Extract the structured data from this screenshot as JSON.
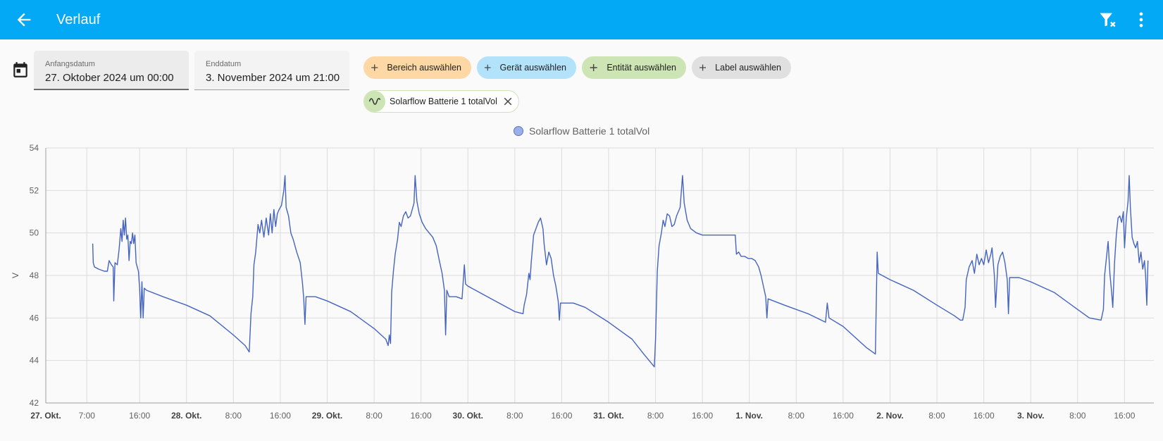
{
  "header": {
    "title": "Verlauf",
    "back_icon": "arrow-left-icon",
    "filter_icon": "filter-remove-icon",
    "menu_icon": "dots-vertical-icon",
    "bar_color": "#03a9f4"
  },
  "date_range": {
    "calendar_icon": "calendar-icon",
    "start": {
      "label": "Anfangsdatum",
      "value": "27. Oktober 2024 um 00:00"
    },
    "end": {
      "label": "Enddatum",
      "value": "3. November 2024 um 21:00"
    }
  },
  "pickers": [
    {
      "label": "Bereich auswählen",
      "color": "#fdd8a4"
    },
    {
      "label": "Gerät auswählen",
      "color": "#b3e3fa"
    },
    {
      "label": "Entität auswählen",
      "color": "#cde5b5"
    },
    {
      "label": "Label auswählen",
      "color": "#e0e0e0"
    }
  ],
  "selected_entity": {
    "label": "Solarflow Batterie 1 totalVol",
    "icon": "sine-wave-icon",
    "close_icon": "close-icon"
  },
  "chart_data": {
    "type": "line",
    "legend": "Solarflow Batterie 1 totalVol",
    "legend_position": "top-center",
    "ylabel": "V",
    "ylim": [
      42,
      54
    ],
    "yticks": [
      42,
      44,
      46,
      48,
      50,
      52,
      54
    ],
    "x_range_hours": [
      0,
      189
    ],
    "xticks": [
      {
        "label": "27. Okt.",
        "hour": 0,
        "bold": true
      },
      {
        "label": "7:00",
        "hour": 7,
        "bold": false
      },
      {
        "label": "16:00",
        "hour": 16,
        "bold": false
      },
      {
        "label": "28. Okt.",
        "hour": 24,
        "bold": true
      },
      {
        "label": "8:00",
        "hour": 32,
        "bold": false
      },
      {
        "label": "16:00",
        "hour": 40,
        "bold": false
      },
      {
        "label": "29. Okt.",
        "hour": 48,
        "bold": true
      },
      {
        "label": "8:00",
        "hour": 56,
        "bold": false
      },
      {
        "label": "16:00",
        "hour": 64,
        "bold": false
      },
      {
        "label": "30. Okt.",
        "hour": 72,
        "bold": true
      },
      {
        "label": "8:00",
        "hour": 80,
        "bold": false
      },
      {
        "label": "16:00",
        "hour": 88,
        "bold": false
      },
      {
        "label": "31. Okt.",
        "hour": 96,
        "bold": true
      },
      {
        "label": "8:00",
        "hour": 104,
        "bold": false
      },
      {
        "label": "16:00",
        "hour": 112,
        "bold": false
      },
      {
        "label": "1. Nov.",
        "hour": 120,
        "bold": true
      },
      {
        "label": "8:00",
        "hour": 128,
        "bold": false
      },
      {
        "label": "16:00",
        "hour": 136,
        "bold": false
      },
      {
        "label": "2. Nov.",
        "hour": 144,
        "bold": true
      },
      {
        "label": "8:00",
        "hour": 152,
        "bold": false
      },
      {
        "label": "16:00",
        "hour": 160,
        "bold": false
      },
      {
        "label": "3. Nov.",
        "hour": 168,
        "bold": true
      },
      {
        "label": "8:00",
        "hour": 176,
        "bold": false
      },
      {
        "label": "16:00",
        "hour": 184,
        "bold": false
      }
    ],
    "grid": true,
    "line_color": "#4464c0",
    "series": [
      {
        "name": "Solarflow Batterie 1 totalVol",
        "points": [
          [
            8.0,
            49.5
          ],
          [
            8.1,
            48.6
          ],
          [
            8.3,
            48.4
          ],
          [
            9.0,
            48.3
          ],
          [
            10.0,
            48.2
          ],
          [
            10.5,
            48.2
          ],
          [
            10.8,
            48.7
          ],
          [
            11.2,
            48.5
          ],
          [
            11.5,
            48.4
          ],
          [
            11.6,
            46.8
          ],
          [
            11.8,
            48.6
          ],
          [
            12.2,
            48.5
          ],
          [
            12.5,
            49.2
          ],
          [
            12.8,
            50.2
          ],
          [
            13.0,
            49.6
          ],
          [
            13.2,
            50.6
          ],
          [
            13.4,
            49.9
          ],
          [
            13.6,
            50.7
          ],
          [
            13.8,
            49.7
          ],
          [
            14.0,
            49.9
          ],
          [
            14.2,
            48.7
          ],
          [
            14.4,
            49.6
          ],
          [
            14.6,
            49.5
          ],
          [
            14.8,
            50.0
          ],
          [
            15.0,
            49.5
          ],
          [
            15.2,
            49.9
          ],
          [
            15.4,
            48.6
          ],
          [
            15.8,
            48.2
          ],
          [
            16.0,
            47.4
          ],
          [
            16.2,
            46.0
          ],
          [
            16.4,
            47.7
          ],
          [
            16.6,
            46.0
          ],
          [
            16.8,
            47.4
          ],
          [
            17.2,
            47.3
          ],
          [
            20.0,
            47.0
          ],
          [
            24.0,
            46.6
          ],
          [
            28.0,
            46.1
          ],
          [
            32.0,
            45.2
          ],
          [
            34.0,
            44.7
          ],
          [
            34.7,
            44.4
          ],
          [
            35.0,
            46.2
          ],
          [
            35.3,
            47.0
          ],
          [
            35.5,
            48.5
          ],
          [
            35.8,
            49.1
          ],
          [
            36.2,
            50.4
          ],
          [
            36.5,
            50.0
          ],
          [
            36.8,
            50.6
          ],
          [
            37.2,
            49.8
          ],
          [
            37.6,
            50.7
          ],
          [
            38.0,
            49.9
          ],
          [
            38.3,
            50.9
          ],
          [
            38.6,
            50.0
          ],
          [
            38.9,
            51.1
          ],
          [
            39.2,
            50.3
          ],
          [
            39.5,
            50.9
          ],
          [
            39.8,
            51.1
          ],
          [
            40.2,
            51.3
          ],
          [
            40.6,
            52.0
          ],
          [
            40.8,
            52.7
          ],
          [
            41.0,
            51.2
          ],
          [
            41.4,
            50.8
          ],
          [
            41.8,
            50.0
          ],
          [
            42.2,
            49.7
          ],
          [
            42.8,
            49.1
          ],
          [
            43.4,
            48.6
          ],
          [
            43.8,
            47.6
          ],
          [
            44.0,
            46.9
          ],
          [
            44.2,
            45.7
          ],
          [
            44.4,
            47.0
          ],
          [
            46.0,
            47.0
          ],
          [
            48.0,
            46.8
          ],
          [
            52.0,
            46.3
          ],
          [
            56.0,
            45.5
          ],
          [
            58.0,
            45.0
          ],
          [
            58.4,
            44.7
          ],
          [
            58.6,
            45.2
          ],
          [
            58.8,
            44.8
          ],
          [
            59.0,
            47.2
          ],
          [
            59.3,
            48.2
          ],
          [
            59.6,
            49.0
          ],
          [
            60.0,
            49.7
          ],
          [
            60.3,
            50.5
          ],
          [
            60.6,
            50.3
          ],
          [
            61.0,
            50.8
          ],
          [
            61.4,
            51.0
          ],
          [
            61.8,
            50.7
          ],
          [
            62.2,
            50.8
          ],
          [
            62.8,
            51.4
          ],
          [
            63.0,
            52.7
          ],
          [
            63.3,
            51.5
          ],
          [
            63.7,
            50.9
          ],
          [
            64.2,
            50.5
          ],
          [
            64.8,
            50.2
          ],
          [
            65.4,
            50.0
          ],
          [
            66.0,
            49.8
          ],
          [
            66.6,
            49.4
          ],
          [
            67.2,
            48.6
          ],
          [
            67.6,
            48.1
          ],
          [
            68.0,
            47.3
          ],
          [
            68.2,
            45.2
          ],
          [
            68.4,
            47.3
          ],
          [
            68.8,
            47.0
          ],
          [
            70.0,
            47.0
          ],
          [
            71.0,
            46.9
          ],
          [
            71.4,
            48.5
          ],
          [
            71.6,
            47.6
          ],
          [
            72.0,
            47.5
          ],
          [
            76.0,
            46.9
          ],
          [
            80.0,
            46.3
          ],
          [
            81.4,
            46.2
          ],
          [
            81.6,
            46.6
          ],
          [
            82.0,
            47.1
          ],
          [
            82.4,
            48.1
          ],
          [
            82.6,
            47.8
          ],
          [
            82.8,
            48.6
          ],
          [
            83.2,
            49.9
          ],
          [
            83.6,
            50.2
          ],
          [
            84.0,
            50.5
          ],
          [
            84.4,
            50.7
          ],
          [
            84.8,
            50.2
          ],
          [
            85.0,
            49.5
          ],
          [
            85.4,
            48.5
          ],
          [
            85.8,
            49.1
          ],
          [
            86.2,
            48.8
          ],
          [
            86.6,
            48.0
          ],
          [
            87.0,
            47.5
          ],
          [
            87.4,
            46.8
          ],
          [
            87.6,
            45.9
          ],
          [
            87.8,
            46.7
          ],
          [
            90.0,
            46.7
          ],
          [
            92.0,
            46.5
          ],
          [
            96.0,
            45.8
          ],
          [
            100.0,
            45.0
          ],
          [
            102.0,
            44.3
          ],
          [
            103.8,
            43.7
          ],
          [
            104.0,
            45.0
          ],
          [
            104.3,
            48.2
          ],
          [
            104.6,
            49.4
          ],
          [
            105.0,
            50.0
          ],
          [
            105.3,
            50.6
          ],
          [
            105.6,
            50.3
          ],
          [
            106.0,
            50.9
          ],
          [
            106.4,
            50.8
          ],
          [
            106.8,
            50.3
          ],
          [
            107.2,
            50.4
          ],
          [
            107.6,
            50.8
          ],
          [
            108.2,
            51.2
          ],
          [
            108.6,
            52.7
          ],
          [
            108.9,
            51.4
          ],
          [
            109.4,
            50.6
          ],
          [
            110.0,
            50.2
          ],
          [
            111.0,
            50.0
          ],
          [
            112.0,
            49.9
          ],
          [
            113.0,
            49.9
          ],
          [
            114.0,
            49.9
          ],
          [
            115.0,
            49.9
          ],
          [
            116.0,
            49.9
          ],
          [
            117.0,
            49.9
          ],
          [
            117.6,
            49.9
          ],
          [
            117.8,
            49.0
          ],
          [
            118.2,
            49.1
          ],
          [
            118.6,
            48.9
          ],
          [
            119.2,
            48.9
          ],
          [
            119.8,
            48.8
          ],
          [
            120.4,
            48.8
          ],
          [
            121.0,
            48.7
          ],
          [
            121.6,
            48.4
          ],
          [
            122.0,
            48.0
          ],
          [
            122.4,
            47.5
          ],
          [
            122.8,
            47.0
          ],
          [
            123.0,
            46.0
          ],
          [
            123.2,
            46.9
          ],
          [
            126.0,
            46.6
          ],
          [
            130.0,
            46.2
          ],
          [
            133.0,
            45.8
          ],
          [
            133.3,
            46.7
          ],
          [
            133.6,
            46.0
          ],
          [
            136.0,
            45.6
          ],
          [
            140.0,
            44.6
          ],
          [
            141.5,
            44.3
          ],
          [
            141.8,
            49.1
          ],
          [
            142.0,
            48.1
          ],
          [
            144.0,
            47.8
          ],
          [
            148.0,
            47.3
          ],
          [
            152.0,
            46.6
          ],
          [
            155.0,
            46.1
          ],
          [
            156.0,
            45.9
          ],
          [
            156.4,
            45.9
          ],
          [
            156.8,
            46.5
          ],
          [
            157.0,
            47.8
          ],
          [
            157.5,
            48.4
          ],
          [
            158.0,
            48.7
          ],
          [
            158.4,
            48.1
          ],
          [
            158.8,
            49.0
          ],
          [
            159.2,
            48.5
          ],
          [
            159.6,
            48.8
          ],
          [
            160.0,
            48.5
          ],
          [
            160.4,
            49.2
          ],
          [
            160.8,
            48.6
          ],
          [
            161.2,
            49.0
          ],
          [
            161.4,
            49.3
          ],
          [
            161.8,
            48.0
          ],
          [
            162.0,
            46.5
          ],
          [
            162.4,
            48.5
          ],
          [
            162.8,
            48.9
          ],
          [
            163.2,
            49.1
          ],
          [
            163.6,
            48.6
          ],
          [
            164.0,
            47.8
          ],
          [
            164.2,
            46.2
          ],
          [
            164.4,
            47.9
          ],
          [
            166.0,
            47.9
          ],
          [
            168.0,
            47.7
          ],
          [
            172.0,
            47.2
          ],
          [
            176.0,
            46.4
          ],
          [
            178.0,
            46.0
          ],
          [
            180.0,
            45.9
          ],
          [
            180.4,
            46.4
          ],
          [
            180.6,
            48.0
          ],
          [
            180.9,
            48.8
          ],
          [
            181.2,
            49.6
          ],
          [
            181.5,
            48.1
          ],
          [
            181.8,
            47.2
          ],
          [
            182.0,
            46.5
          ],
          [
            182.3,
            48.6
          ],
          [
            182.6,
            49.9
          ],
          [
            182.9,
            50.7
          ],
          [
            183.2,
            50.8
          ],
          [
            183.5,
            50.5
          ],
          [
            183.8,
            51.0
          ],
          [
            184.0,
            49.3
          ],
          [
            184.3,
            50.7
          ],
          [
            184.6,
            51.5
          ],
          [
            184.8,
            52.7
          ],
          [
            185.0,
            51.2
          ],
          [
            185.3,
            49.8
          ],
          [
            185.6,
            49.5
          ],
          [
            185.9,
            49.3
          ],
          [
            186.2,
            49.6
          ],
          [
            186.5,
            48.6
          ],
          [
            186.8,
            49.1
          ],
          [
            187.1,
            48.3
          ],
          [
            187.4,
            48.7
          ],
          [
            187.6,
            48.0
          ],
          [
            187.8,
            46.6
          ],
          [
            188.0,
            48.7
          ]
        ]
      }
    ]
  }
}
